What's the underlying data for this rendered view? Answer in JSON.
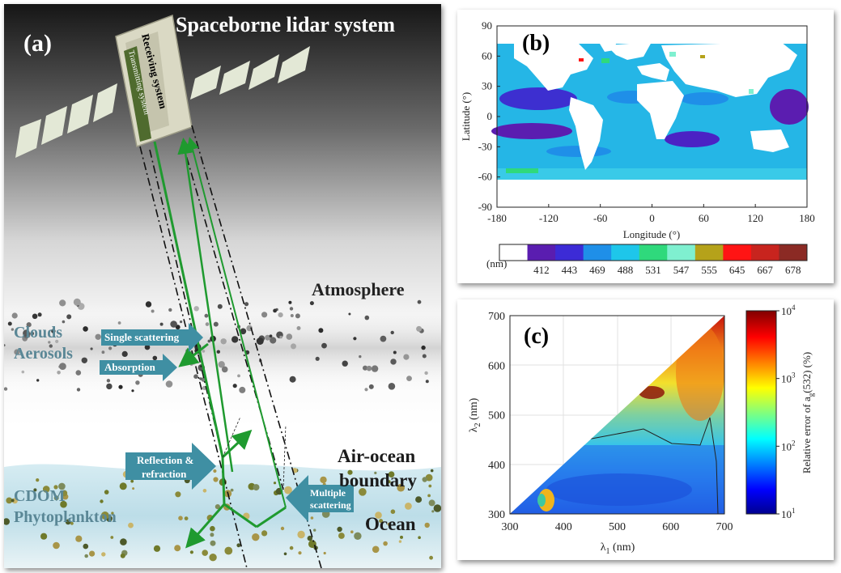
{
  "panel_a": {
    "tag": "(a)",
    "title": "Spaceborne lidar system",
    "satellite": {
      "receiving": "Receiving system",
      "transmitting": "Transmitting system"
    },
    "labels": {
      "atmosphere": "Atmosphere",
      "clouds": "Clouds",
      "aerosols": "Aerosols",
      "single_scattering": "Single scattering",
      "absorption": "Absorption",
      "reflection1": "Reflection &",
      "reflection2": "refraction",
      "air_ocean1": "Air-ocean",
      "air_ocean2": "boundary",
      "cdom": "CDOM",
      "phyto": "Phytoplankton",
      "multiple1": "Multiple",
      "multiple2": "scattering",
      "ocean": "Ocean"
    },
    "colors": {
      "beam": "#1f9a2f",
      "arrow": "#3f8fa3",
      "sky_top": "#1b1b1b",
      "ocean": "#b9dde8"
    }
  },
  "panel_b": {
    "tag": "(b)",
    "xlabel": "Longitude (°)",
    "ylabel": "Latitude (°)",
    "xticks": [
      "-180",
      "-120",
      "-60",
      "0",
      "60",
      "120",
      "180"
    ],
    "yticks": [
      "90",
      "60",
      "30",
      "0",
      "-30",
      "-60",
      "-90"
    ],
    "colorbar_unit": "(nm)",
    "colorbar_labels": [
      "412",
      "443",
      "469",
      "488",
      "531",
      "547",
      "555",
      "645",
      "667",
      "678"
    ],
    "colorbar_colors": [
      "#ffffff",
      "#5a1db0",
      "#3c2bd6",
      "#1f8fe8",
      "#1ec6ea",
      "#2fd97c",
      "#7ff0d0",
      "#b5a21a",
      "#ff1414",
      "#c8241e",
      "#8b2a24"
    ]
  },
  "panel_c": {
    "tag": "(c)",
    "xlabel_sym": "λ",
    "xlabel_sub": "1",
    "xlabel_unit": " (nm)",
    "ylabel_sym": "λ",
    "ylabel_sub": "2",
    "ylabel_unit": " (nm)",
    "xticks": [
      "300",
      "400",
      "500",
      "600",
      "700"
    ],
    "yticks": [
      "700",
      "600",
      "500",
      "400",
      "300"
    ],
    "colorbar_title": "Relative error of a",
    "colorbar_title_sub": "g",
    "colorbar_title_tail": "(532) (%)",
    "colorbar_ticks": [
      "10",
      "10",
      "10",
      "10"
    ],
    "colorbar_exps": [
      "4",
      "3",
      "2",
      "1"
    ]
  },
  "chart_data": [
    {
      "type": "heatmap",
      "panel": "b",
      "description_fields_only": true,
      "xlabel": "Longitude (°)",
      "ylabel": "Latitude (°)",
      "xlim": [
        -180,
        180
      ],
      "ylim": [
        -90,
        90
      ],
      "categories": [
        "412",
        "443",
        "469",
        "488",
        "531",
        "547",
        "555",
        "645",
        "667",
        "678"
      ]
    },
    {
      "type": "heatmap",
      "panel": "c",
      "xlabel": "λ1 (nm)",
      "ylabel": "λ2 (nm)",
      "xlim": [
        300,
        700
      ],
      "ylim": [
        300,
        700
      ],
      "colorbar": "Relative error of ag(532) (%)",
      "colorbar_range": [
        10,
        10000
      ],
      "colorbar_scale": "log"
    }
  ]
}
